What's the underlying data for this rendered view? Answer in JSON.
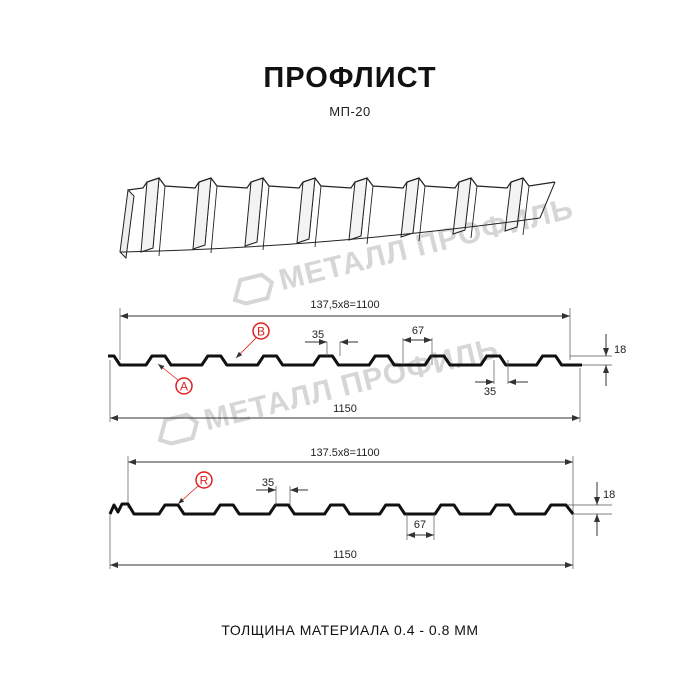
{
  "title": "ПРОФЛИСТ",
  "subtitle": "МП-20",
  "footer": "ТОЛЩИНА МАТЕРИАЛА 0.4 - 0.8 ММ",
  "watermark": "МЕТАЛЛ ПРОФИЛЬ",
  "colors": {
    "profile": "#111111",
    "marker": "#e02020",
    "watermark": "#d6d6d6",
    "dimension": "#333333"
  },
  "profile_a": {
    "top_dim": "137,5x8=1100",
    "bottom_dim": "1150",
    "rib_top": "35",
    "rib_gap": "67",
    "rib_bottom": "35",
    "height": "18",
    "marker_a": "A",
    "marker_b": "B"
  },
  "profile_r": {
    "top_dim": "137.5x8=1100",
    "bottom_dim": "1150",
    "rib_top": "35",
    "rib_gap": "67",
    "height": "18",
    "marker_r": "R"
  }
}
